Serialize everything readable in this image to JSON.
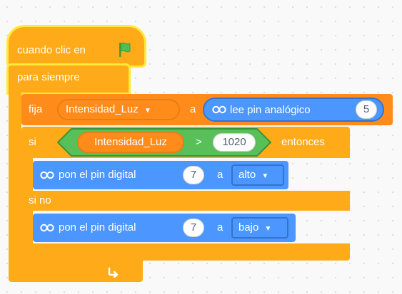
{
  "script": {
    "hat": {
      "label": "cuando clic en",
      "icon": "green-flag-icon"
    },
    "forever": {
      "label": "para siempre",
      "loop_icon": "loop-arrow-icon"
    },
    "set_var": {
      "label": "fija",
      "variable": "Intensidad_Luz",
      "dropdown_arrow": "▼",
      "connector": "a",
      "reporter": {
        "icon": "infinity-icon",
        "label": "lee pin analógico",
        "pin": "5"
      }
    },
    "if_block": {
      "if_label": "si",
      "condition": {
        "left": "Intensidad_Luz",
        "operator": ">",
        "right": "1020"
      },
      "then_label": "entonces",
      "else_label": "si no"
    },
    "then_action": {
      "icon": "infinity-icon",
      "label": "pon el pin digital",
      "pin": "7",
      "connector": "a",
      "value": "alto",
      "dropdown_arrow": "▼"
    },
    "else_action": {
      "icon": "infinity-icon",
      "label": "pon el pin digital",
      "pin": "7",
      "connector": "a",
      "value": "bajo",
      "dropdown_arrow": "▼"
    }
  },
  "colors": {
    "control": "#ffab19",
    "control_dark": "#ff8c1a",
    "operator": "#59c059",
    "extension": "#4c97ff",
    "highlight": "#ffe93a",
    "flag": "#4cbf56"
  }
}
